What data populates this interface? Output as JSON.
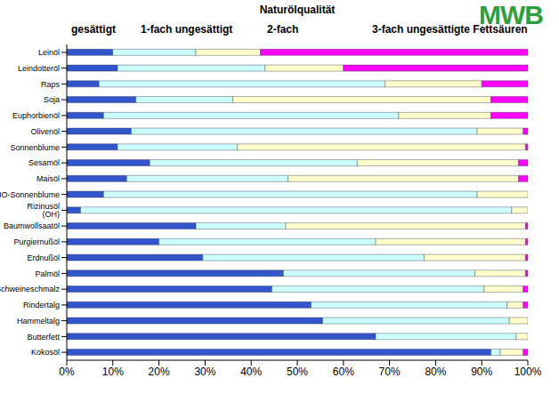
{
  "chart_data": {
    "type": "bar",
    "title": "Naturölqualität",
    "annotation": "MWB",
    "orientation": "horizontal",
    "stacked": true,
    "grid": false,
    "legend": "top",
    "categories": [
      "Leinöl",
      "Leindotteröl",
      "Raps",
      "Soja",
      "Euphorbienöl",
      "Olivenöl",
      "Sonnenblume",
      "Sesamöl",
      "Maisöl",
      "HO-Sonnenblume",
      "Rizinusöl (OH)",
      "Baumwollsaatöl",
      "Purgiernußöl",
      "Erdnußöl",
      "Palmöl",
      "Schweineschmalz",
      "Rindertalg",
      "Hammeltalg",
      "Butterfett",
      "Kokosöl"
    ],
    "series": [
      {
        "name": "gesättigt",
        "color": "#3355cc",
        "values": [
          10,
          11,
          7,
          15,
          8,
          14,
          11,
          18,
          13,
          8,
          3,
          28,
          20,
          29.5,
          47,
          44.5,
          53,
          55.5,
          67,
          92
        ]
      },
      {
        "name": "1-fach ungesättigt",
        "color": "#ccffff",
        "values": [
          18,
          32,
          62,
          21,
          64,
          75,
          26,
          45,
          35,
          81,
          93.5,
          19.5,
          47,
          48,
          41.5,
          46,
          42.5,
          40.5,
          30.5,
          2
        ]
      },
      {
        "name": "2-fach",
        "color": "#ffffcc",
        "values": [
          14,
          17,
          21,
          56,
          20,
          10,
          62.5,
          35,
          50,
          11,
          3.5,
          52,
          32.5,
          22,
          11,
          8.5,
          3.5,
          4,
          2.5,
          5
        ]
      },
      {
        "name": "3-fach ungesättigte Fettsäuren",
        "color": "#ff00ff",
        "values": [
          58,
          40,
          10,
          8,
          8,
          1,
          0.5,
          2,
          2,
          0,
          0,
          0.5,
          0.5,
          0.5,
          0.5,
          1,
          1,
          0,
          0,
          1
        ]
      }
    ],
    "xlim": [
      0,
      100
    ],
    "xticks": [
      {
        "value": 0,
        "label": "0%"
      },
      {
        "value": 10,
        "label": "10%"
      },
      {
        "value": 20,
        "label": "20%"
      },
      {
        "value": 30,
        "label": "30%"
      },
      {
        "value": 40,
        "label": "40%"
      },
      {
        "value": 50,
        "label": "50%"
      },
      {
        "value": 60,
        "label": "60%"
      },
      {
        "value": 70,
        "label": "70%"
      },
      {
        "value": 80,
        "label": "80%"
      },
      {
        "value": 90,
        "label": "90%"
      },
      {
        "value": 100,
        "label": "100%"
      }
    ]
  }
}
